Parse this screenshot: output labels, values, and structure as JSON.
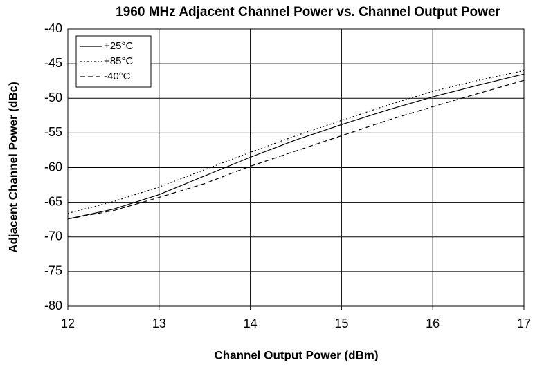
{
  "chart_data": {
    "type": "line",
    "title": "1960 MHz Adjacent Channel Power vs. Channel Output Power",
    "xlabel": "Channel Output Power (dBm)",
    "ylabel": "Adjacent Channel Power (dBc)",
    "x": [
      12,
      12.5,
      13,
      13.5,
      14,
      14.5,
      15,
      15.5,
      16,
      16.5,
      17
    ],
    "series": [
      {
        "name": "+25°C",
        "color": "#000000",
        "dash": "solid",
        "values": [
          -67.4,
          -66.0,
          -63.9,
          -61.2,
          -58.5,
          -56.0,
          -53.8,
          -51.7,
          -49.8,
          -48.1,
          -46.5
        ]
      },
      {
        "name": "+85°C",
        "color": "#000000",
        "dash": "dotted",
        "values": [
          -66.6,
          -64.9,
          -62.8,
          -60.3,
          -57.8,
          -55.4,
          -53.2,
          -51.0,
          -49.0,
          -47.4,
          -46.0
        ]
      },
      {
        "name": "-40°C",
        "color": "#000000",
        "dash": "dashed",
        "values": [
          -67.4,
          -66.2,
          -64.3,
          -62.3,
          -59.8,
          -57.6,
          -55.4,
          -53.2,
          -51.2,
          -49.3,
          -47.4
        ]
      }
    ],
    "xlim": [
      12,
      17
    ],
    "xticks": [
      12,
      13,
      14,
      15,
      16,
      17
    ],
    "ylim": [
      -80,
      -40
    ],
    "yticks": [
      -80,
      -75,
      -70,
      -65,
      -60,
      -55,
      -50,
      -45,
      -40
    ],
    "grid": true,
    "legend": "upper left"
  }
}
